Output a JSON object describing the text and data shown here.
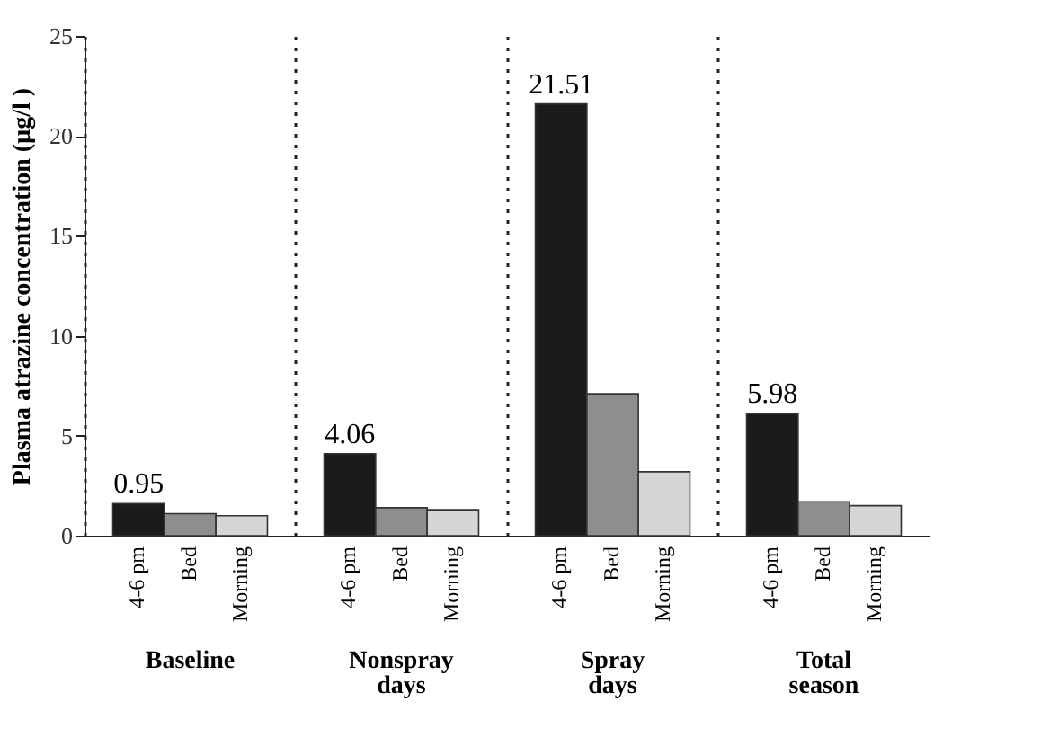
{
  "chart_data": {
    "type": "bar",
    "ylabel": "Plasma atrazine concentration (µg/l )",
    "categories": [
      "Baseline",
      "Nonspray days",
      "Spray days",
      "Total season"
    ],
    "series": [
      {
        "name": "4-6 pm",
        "color": "#1c1a1b",
        "values": [
          1.6,
          4.1,
          21.6,
          6.1
        ]
      },
      {
        "name": "Bed",
        "color": "#8e8e8e",
        "values": [
          1.1,
          1.4,
          7.1,
          1.7
        ]
      },
      {
        "name": "Morning",
        "color": "#d6d6d6",
        "values": [
          1.0,
          1.3,
          3.2,
          1.5
        ]
      }
    ],
    "annotations": [
      "0.95",
      "4.06",
      "21.51",
      "5.98"
    ],
    "ylim": [
      0,
      25
    ],
    "yticks": [
      0,
      5,
      10,
      15,
      20,
      25
    ],
    "grid": "x",
    "legend": false
  }
}
